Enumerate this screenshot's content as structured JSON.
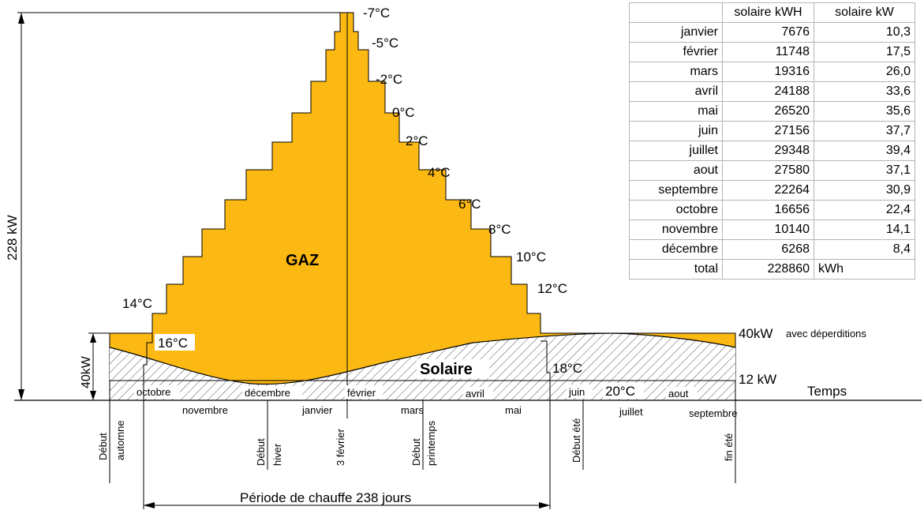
{
  "diagram": {
    "labels": {
      "gaz": "GAZ",
      "solaire": "Solaire",
      "temps": "Temps",
      "power_total": "228 kW",
      "power_40": "40kW",
      "label_40kw_main": "40kW",
      "label_40kw_sub": "avec déperditions",
      "label_12kw": "12 kW",
      "period": "Période de chauffe 238 jours"
    },
    "temperatures": [
      "-7°C",
      "-5°C",
      "-2°C",
      "0°C",
      "2°C",
      "4°C",
      "6°C",
      "8°C",
      "10°C",
      "12°C",
      "14°C",
      "16°C",
      "18°C",
      "20°C"
    ],
    "months_in_band": [
      "octobre",
      "décembre",
      "février",
      "avril",
      "juin",
      "aout"
    ],
    "months_below_axis": [
      "novembre",
      "janvier",
      "mars",
      "mai",
      "juillet",
      "septembre"
    ],
    "season_markers": [
      {
        "a": "Début",
        "b": "automne"
      },
      {
        "a": "Début",
        "b": "hiver"
      },
      {
        "a": "3 février",
        "b": ""
      },
      {
        "a": "Début",
        "b": "printemps"
      },
      {
        "a": "Début été",
        "b": ""
      },
      {
        "a": "fin été",
        "b": ""
      }
    ],
    "colors": {
      "gaz": "#FDB913",
      "solar_hatch": "#555555",
      "line": "#000000"
    }
  },
  "table": {
    "headers": [
      "",
      "solaire kWH",
      "solaire kW"
    ],
    "rows": [
      {
        "month": "janvier",
        "kwh": "7676",
        "kw": "10,3"
      },
      {
        "month": "février",
        "kwh": "11748",
        "kw": "17,5"
      },
      {
        "month": "mars",
        "kwh": "19316",
        "kw": "26,0"
      },
      {
        "month": "avril",
        "kwh": "24188",
        "kw": "33,6"
      },
      {
        "month": "mai",
        "kwh": "26520",
        "kw": "35,6"
      },
      {
        "month": "juin",
        "kwh": "27156",
        "kw": "37,7"
      },
      {
        "month": "juillet",
        "kwh": "29348",
        "kw": "39,4"
      },
      {
        "month": "aout",
        "kwh": "27580",
        "kw": "37,1"
      },
      {
        "month": "septembre",
        "kwh": "22264",
        "kw": "30,9"
      },
      {
        "month": "octobre",
        "kwh": "16656",
        "kw": "22,4"
      },
      {
        "month": "novembre",
        "kwh": "10140",
        "kw": "14,1"
      },
      {
        "month": "décembre",
        "kwh": "6268",
        "kw": "8,4"
      }
    ],
    "total": {
      "label": "total",
      "kwh": "228860",
      "unit": "kWh"
    }
  }
}
